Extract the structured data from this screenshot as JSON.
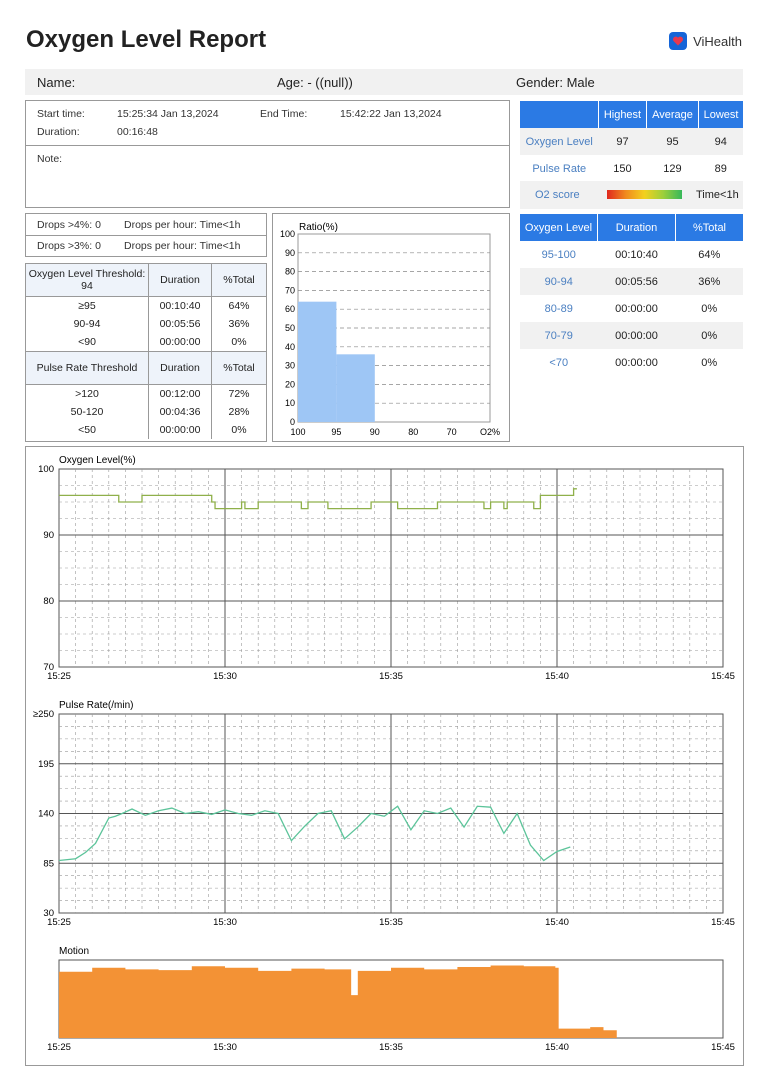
{
  "header": {
    "title": "Oxygen Level Report",
    "brand": "ViHealth"
  },
  "info": {
    "name": "Name:",
    "age": "Age: -  ((null))",
    "gender": "Gender: Male"
  },
  "session": {
    "start_label": "Start time:",
    "start_value": "15:25:34 Jan 13,2024",
    "end_label": "End Time:",
    "end_value": "15:42:22 Jan 13,2024",
    "duration_label": "Duration:",
    "duration_value": "00:16:48",
    "note_label": "Note:"
  },
  "drops": {
    "d4": "Drops >4%: 0",
    "d4_hour": "Drops per hour: Time<1h",
    "d3": "Drops >3%: 0",
    "d3_hour": "Drops per hour: Time<1h"
  },
  "oxygen_threshold": {
    "header": [
      "Oxygen Level Threshold: 94",
      "Duration",
      "%Total"
    ],
    "rows": [
      [
        "≥95",
        "00:10:40",
        "64%"
      ],
      [
        "90-94",
        "00:05:56",
        "36%"
      ],
      [
        "<90",
        "00:00:00",
        "0%"
      ]
    ]
  },
  "pulse_threshold": {
    "header": [
      "Pulse Rate Threshold",
      "Duration",
      "%Total"
    ],
    "rows": [
      [
        ">120",
        "00:12:00",
        "72%"
      ],
      [
        "50-120",
        "00:04:36",
        "28%"
      ],
      [
        "<50",
        "00:00:00",
        "0%"
      ]
    ]
  },
  "summary": {
    "header": [
      "",
      "Highest",
      "Average",
      "Lowest"
    ],
    "rows": [
      [
        "Oxygen Level",
        "97",
        "95",
        "94"
      ],
      [
        "Pulse Rate",
        "150",
        "129",
        "89"
      ]
    ],
    "o2_label": "O2 score",
    "o2_value": "Time<1h"
  },
  "distribution": {
    "header": [
      "Oxygen Level",
      "Duration",
      "%Total"
    ],
    "rows": [
      [
        "95-100",
        "00:10:40",
        "64%"
      ],
      [
        "90-94",
        "00:05:56",
        "36%"
      ],
      [
        "80-89",
        "00:00:00",
        "0%"
      ],
      [
        "70-79",
        "00:00:00",
        "0%"
      ],
      [
        "<70",
        "00:00:00",
        "0%"
      ]
    ]
  },
  "colors": {
    "accent": "#2b7ae4",
    "ratio_bar": "#9ec6f5",
    "oxygen_line": "#8fb04a",
    "pulse_line": "#5cc49a",
    "motion": "#f39235"
  },
  "chart_data": [
    {
      "type": "bar",
      "title": "Ratio(%)",
      "categories": [
        "100-95",
        "95-90",
        "90-80",
        "80-70",
        "70-O2%"
      ],
      "values": [
        64,
        36,
        0,
        0,
        0
      ],
      "x_ticks": [
        "100",
        "95",
        "90",
        "80",
        "70",
        "O2%"
      ],
      "y_ticks": [
        "0",
        "10",
        "20",
        "30",
        "40",
        "50",
        "60",
        "70",
        "80",
        "90",
        "100"
      ],
      "ylim": [
        0,
        100
      ]
    },
    {
      "type": "line",
      "title": "Oxygen Level(%)",
      "x_ticks": [
        "15:25",
        "15:30",
        "15:35",
        "15:40",
        "15:45"
      ],
      "y_ticks": [
        "70",
        "80",
        "90",
        "100"
      ],
      "ylim": [
        70,
        100
      ],
      "x": [
        0,
        1.7,
        1.8,
        2.4,
        2.5,
        4.6,
        4.7,
        5.5,
        5.6,
        5.9,
        6.0,
        7.3,
        7.5,
        8.0,
        8.1,
        9.3,
        9.4,
        10.0,
        10.2,
        11.2,
        11.4,
        12.8,
        13.0,
        13.4,
        13.5,
        14.3,
        14.5,
        15.5,
        15.6
      ],
      "y": [
        96,
        96,
        95,
        95,
        96,
        95,
        94,
        95,
        94,
        94,
        95,
        94,
        95,
        95,
        94,
        94,
        95,
        95,
        94,
        94,
        95,
        94,
        95,
        94,
        95,
        94,
        96,
        97,
        97
      ]
    },
    {
      "type": "line",
      "title": "Pulse Rate(/min)",
      "x_ticks": [
        "15:25",
        "15:30",
        "15:35",
        "15:40",
        "15:45"
      ],
      "y_ticks": [
        "30",
        "85",
        "140",
        "195",
        "≥250"
      ],
      "ylim": [
        30,
        250
      ],
      "x": [
        0,
        0.5,
        0.8,
        1.1,
        1.5,
        1.7,
        1.9,
        2.2,
        2.6,
        3.0,
        3.4,
        3.8,
        4.2,
        4.6,
        5.0,
        5.4,
        5.8,
        6.2,
        6.6,
        7.0,
        7.4,
        7.8,
        8.2,
        8.6,
        9.0,
        9.4,
        9.8,
        10.2,
        10.6,
        11.0,
        11.4,
        11.8,
        12.2,
        12.6,
        13.0,
        13.4,
        13.8,
        14.2,
        14.6,
        15.0,
        15.4
      ],
      "y": [
        88,
        90,
        97,
        107,
        135,
        137,
        140,
        145,
        138,
        143,
        146,
        140,
        142,
        139,
        144,
        140,
        138,
        143,
        140,
        110,
        126,
        140,
        143,
        112,
        125,
        140,
        137,
        148,
        122,
        143,
        140,
        146,
        125,
        148,
        147,
        118,
        140,
        105,
        88,
        98,
        103
      ]
    },
    {
      "type": "area",
      "title": "Motion",
      "x_ticks": [
        "15:25",
        "15:30",
        "15:35",
        "15:40",
        "15:45"
      ],
      "x": [
        0,
        1,
        2,
        3,
        4,
        5,
        6,
        7,
        8,
        8.8,
        9,
        10,
        11,
        12,
        13,
        14,
        14.95,
        15.05,
        16,
        16.4,
        16.8
      ],
      "y": [
        0.85,
        0.9,
        0.88,
        0.87,
        0.92,
        0.9,
        0.86,
        0.89,
        0.88,
        0.55,
        0.86,
        0.9,
        0.88,
        0.91,
        0.93,
        0.92,
        0.9,
        0.12,
        0.14,
        0.1,
        0.12
      ]
    }
  ]
}
